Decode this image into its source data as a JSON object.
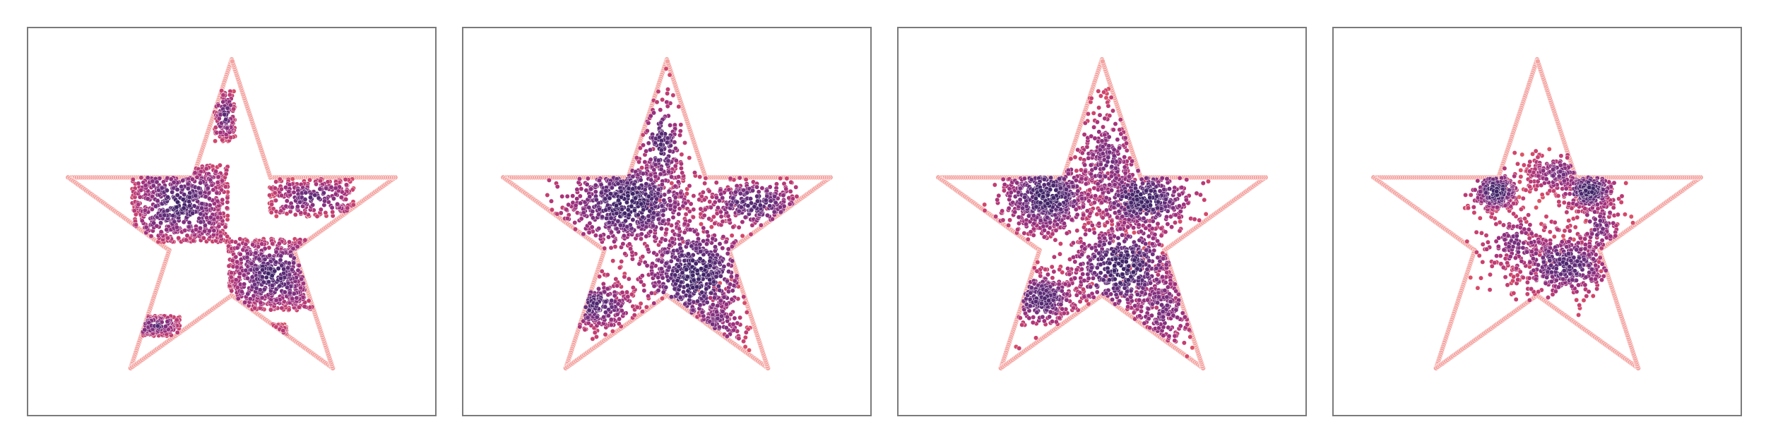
{
  "figure": {
    "background": "#ffffff",
    "frame_color": "#7a7a7a",
    "boundary_color": "#f4a3a0",
    "colormap": "magma_r",
    "colormap_stops": [
      "#f6b48f",
      "#f1705c",
      "#d1446b",
      "#a1307e",
      "#6b2f7e",
      "#3f2467"
    ]
  },
  "chart_data": [
    {
      "type": "scatter",
      "panel": 1,
      "title": "",
      "xlabel": "",
      "ylabel": "",
      "xlim": [
        -1.15,
        1.15
      ],
      "ylim": [
        -1.05,
        1.15
      ],
      "grid": false,
      "legend": "none",
      "axes_ticks": "none",
      "boundary": {
        "shape": "star",
        "outer_radius": 1.0,
        "inner_radius": 0.382,
        "center": [
          0,
          0
        ],
        "vertices": [
          [
            0,
            1.0
          ],
          [
            0.225,
            0.309
          ],
          [
            0.951,
            0.309
          ],
          [
            0.363,
            -0.118
          ],
          [
            0.588,
            -0.809
          ],
          [
            0,
            -0.382
          ],
          [
            -0.588,
            -0.809
          ],
          [
            -0.363,
            -0.118
          ],
          [
            -0.951,
            0.309
          ],
          [
            -0.225,
            0.309
          ]
        ],
        "marker_color": "#f4a3a0"
      },
      "clusters": [
        {
          "kind": "box",
          "xmin": -0.58,
          "xmax": -0.02,
          "ymin": -0.07,
          "ymax": 0.38,
          "n": 700,
          "density": "high"
        },
        {
          "kind": "box",
          "xmin": -0.02,
          "xmax": 0.48,
          "ymin": -0.47,
          "ymax": -0.05,
          "n": 620,
          "density": "high"
        },
        {
          "kind": "box",
          "xmin": 0.22,
          "xmax": 0.72,
          "ymin": 0.08,
          "ymax": 0.3,
          "n": 260,
          "density": "medium"
        },
        {
          "kind": "box",
          "xmin": -0.1,
          "xmax": 0.02,
          "ymin": 0.52,
          "ymax": 0.82,
          "n": 120,
          "density": "medium"
        },
        {
          "kind": "box",
          "xmin": -0.58,
          "xmax": -0.3,
          "ymin": -0.62,
          "ymax": -0.5,
          "n": 140,
          "density": "medium"
        },
        {
          "kind": "box",
          "xmin": 0.22,
          "xmax": 0.32,
          "ymin": -0.72,
          "ymax": -0.55,
          "n": 40,
          "density": "low"
        }
      ]
    },
    {
      "type": "scatter",
      "panel": 2,
      "title": "",
      "xlabel": "",
      "ylabel": "",
      "xlim": [
        -1.15,
        1.15
      ],
      "ylim": [
        -1.05,
        1.15
      ],
      "grid": false,
      "legend": "none",
      "axes_ticks": "none",
      "boundary": {
        "shape": "star",
        "outer_radius": 1.0,
        "inner_radius": 0.382,
        "center": [
          0,
          0
        ],
        "marker_color": "#f4a3a0"
      },
      "clusters": [
        {
          "kind": "blob",
          "x": -0.22,
          "y": 0.16,
          "sx": 0.2,
          "sy": 0.14,
          "n": 700,
          "density": "high"
        },
        {
          "kind": "blob",
          "x": 0.16,
          "y": -0.26,
          "sx": 0.17,
          "sy": 0.17,
          "n": 560,
          "density": "high"
        },
        {
          "kind": "blob",
          "x": 0.5,
          "y": 0.16,
          "sx": 0.16,
          "sy": 0.08,
          "n": 260,
          "density": "medium"
        },
        {
          "kind": "blob",
          "x": -0.03,
          "y": 0.5,
          "sx": 0.07,
          "sy": 0.16,
          "n": 160,
          "density": "medium"
        },
        {
          "kind": "blob",
          "x": -0.42,
          "y": -0.44,
          "sx": 0.13,
          "sy": 0.08,
          "n": 200,
          "density": "medium"
        },
        {
          "kind": "blob",
          "x": 0.3,
          "y": -0.55,
          "sx": 0.09,
          "sy": 0.12,
          "n": 120,
          "density": "low"
        }
      ]
    },
    {
      "type": "scatter",
      "panel": 3,
      "title": "",
      "xlabel": "",
      "ylabel": "",
      "xlim": [
        -1.15,
        1.15
      ],
      "ylim": [
        -1.05,
        1.15
      ],
      "grid": false,
      "legend": "none",
      "axes_ticks": "none",
      "boundary": {
        "shape": "star",
        "outer_radius": 1.0,
        "inner_radius": 0.382,
        "center": [
          0,
          0
        ],
        "marker_color": "#f4a3a0"
      },
      "clusters": [
        {
          "kind": "blob",
          "x": -0.32,
          "y": 0.2,
          "sx": 0.14,
          "sy": 0.12,
          "n": 520,
          "density": "high"
        },
        {
          "kind": "blob",
          "x": 0.24,
          "y": 0.18,
          "sx": 0.15,
          "sy": 0.1,
          "n": 380,
          "density": "high"
        },
        {
          "kind": "blob",
          "x": 0.12,
          "y": -0.22,
          "sx": 0.17,
          "sy": 0.15,
          "n": 520,
          "density": "high"
        },
        {
          "kind": "blob",
          "x": -0.35,
          "y": -0.4,
          "sx": 0.12,
          "sy": 0.09,
          "n": 260,
          "density": "medium"
        },
        {
          "kind": "blob",
          "x": 0.03,
          "y": 0.4,
          "sx": 0.12,
          "sy": 0.2,
          "n": 300,
          "density": "low"
        },
        {
          "kind": "blob",
          "x": 0.35,
          "y": -0.45,
          "sx": 0.13,
          "sy": 0.16,
          "n": 220,
          "density": "low"
        }
      ]
    },
    {
      "type": "scatter",
      "panel": 4,
      "title": "",
      "xlabel": "",
      "ylabel": "",
      "xlim": [
        -1.15,
        1.15
      ],
      "ylim": [
        -1.05,
        1.15
      ],
      "grid": false,
      "legend": "none",
      "axes_ticks": "none",
      "boundary": {
        "shape": "star",
        "outer_radius": 1.0,
        "inner_radius": 0.382,
        "center": [
          0,
          0
        ],
        "marker_color": "#f4a3a0"
      },
      "clusters": [
        {
          "kind": "blob",
          "x": -0.24,
          "y": 0.23,
          "sx": 0.07,
          "sy": 0.06,
          "n": 220,
          "density": "high"
        },
        {
          "kind": "blob",
          "x": 0.3,
          "y": 0.23,
          "sx": 0.08,
          "sy": 0.06,
          "n": 240,
          "density": "high"
        },
        {
          "kind": "blob",
          "x": 0.16,
          "y": -0.2,
          "sx": 0.16,
          "sy": 0.1,
          "n": 380,
          "density": "medium"
        },
        {
          "kind": "blob",
          "x": -0.12,
          "y": -0.08,
          "sx": 0.12,
          "sy": 0.1,
          "n": 160,
          "density": "low"
        },
        {
          "kind": "blob",
          "x": 0.12,
          "y": 0.33,
          "sx": 0.12,
          "sy": 0.07,
          "n": 180,
          "density": "low"
        },
        {
          "kind": "blob",
          "x": 0.36,
          "y": 0.02,
          "sx": 0.08,
          "sy": 0.12,
          "n": 120,
          "density": "low"
        }
      ]
    }
  ]
}
